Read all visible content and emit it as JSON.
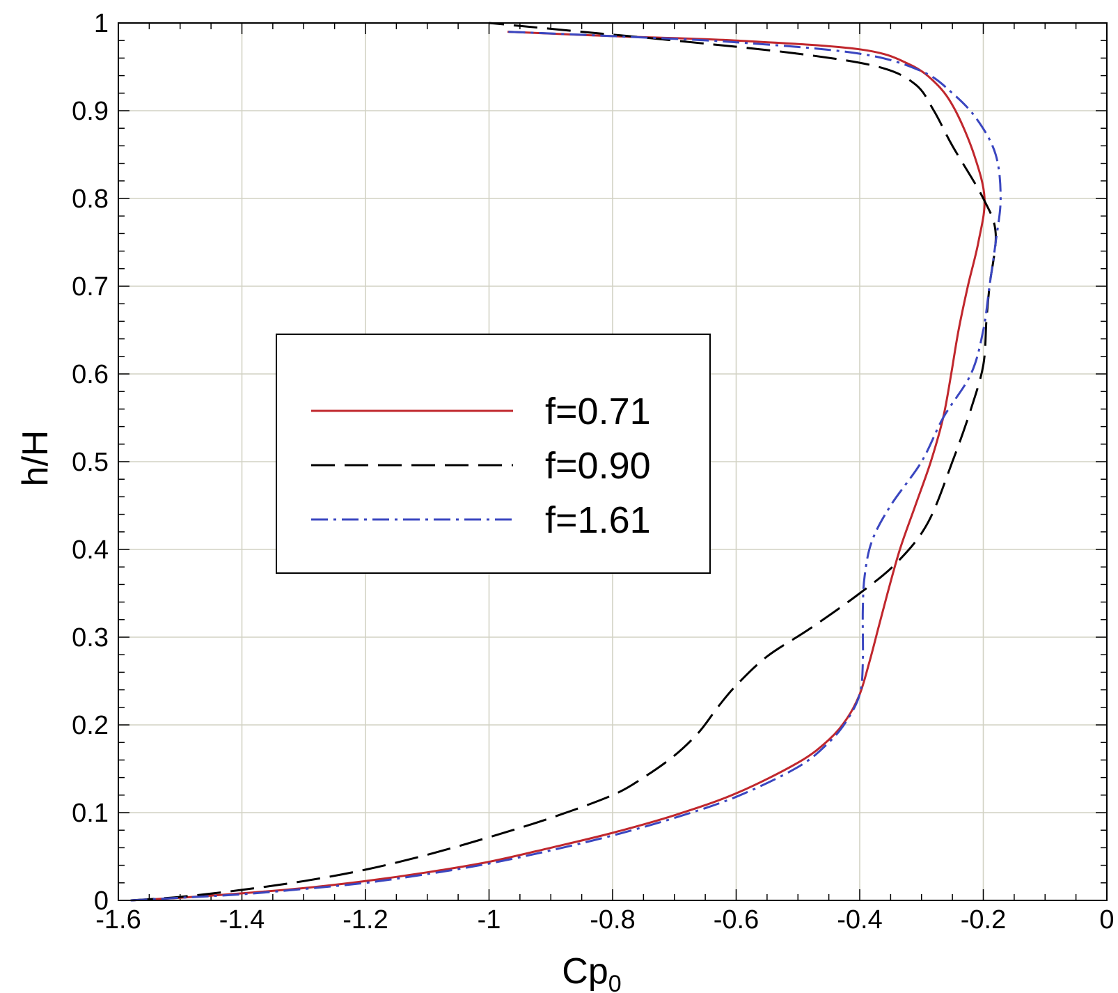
{
  "chart_data": {
    "type": "line",
    "title": "",
    "xlabel": "Cp",
    "xlabel_sub": "0",
    "ylabel": "h/H",
    "xlim": [
      -1.6,
      0
    ],
    "ylim": [
      0,
      1
    ],
    "xticks": [
      -1.6,
      -1.4,
      -1.2,
      -1,
      -0.8,
      -0.6,
      -0.4,
      -0.2,
      0
    ],
    "xtick_labels": [
      "-1.6",
      "-1.4",
      "-1.2",
      "-1",
      "-0.8",
      "-0.6",
      "-0.4",
      "-0.2",
      "0"
    ],
    "yticks": [
      0,
      0.1,
      0.2,
      0.3,
      0.4,
      0.5,
      0.6,
      0.7,
      0.8,
      0.9,
      1
    ],
    "ytick_labels": [
      "0",
      "0.1",
      "0.2",
      "0.3",
      "0.4",
      "0.5",
      "0.6",
      "0.7",
      "0.8",
      "0.9",
      "1"
    ],
    "grid": true,
    "legend_position": "center-left",
    "series": [
      {
        "name": "f=0.71",
        "color": "#c0272d",
        "style": "solid",
        "points": [
          [
            -1.58,
            0.0
          ],
          [
            -1.5,
            0.003
          ],
          [
            -1.4,
            0.008
          ],
          [
            -1.3,
            0.014
          ],
          [
            -1.2,
            0.022
          ],
          [
            -1.1,
            0.032
          ],
          [
            -1.0,
            0.044
          ],
          [
            -0.9,
            0.06
          ],
          [
            -0.8,
            0.077
          ],
          [
            -0.7,
            0.097
          ],
          [
            -0.6,
            0.122
          ],
          [
            -0.5,
            0.157
          ],
          [
            -0.45,
            0.183
          ],
          [
            -0.42,
            0.208
          ],
          [
            -0.4,
            0.235
          ],
          [
            -0.385,
            0.27
          ],
          [
            -0.37,
            0.31
          ],
          [
            -0.355,
            0.35
          ],
          [
            -0.335,
            0.4
          ],
          [
            -0.31,
            0.45
          ],
          [
            -0.285,
            0.5
          ],
          [
            -0.265,
            0.55
          ],
          [
            -0.252,
            0.6
          ],
          [
            -0.24,
            0.65
          ],
          [
            -0.225,
            0.7
          ],
          [
            -0.208,
            0.75
          ],
          [
            -0.198,
            0.8
          ],
          [
            -0.215,
            0.85
          ],
          [
            -0.245,
            0.9
          ],
          [
            -0.275,
            0.93
          ],
          [
            -0.32,
            0.953
          ],
          [
            -0.4,
            0.97
          ],
          [
            -0.6,
            0.98
          ],
          [
            -0.8,
            0.985
          ],
          [
            -0.97,
            0.99
          ]
        ]
      },
      {
        "name": "f=0.90",
        "color": "#000000",
        "style": "dashed",
        "points": [
          [
            -1.58,
            0.0
          ],
          [
            -1.5,
            0.004
          ],
          [
            -1.4,
            0.012
          ],
          [
            -1.3,
            0.022
          ],
          [
            -1.2,
            0.035
          ],
          [
            -1.1,
            0.052
          ],
          [
            -1.0,
            0.072
          ],
          [
            -0.9,
            0.094
          ],
          [
            -0.8,
            0.12
          ],
          [
            -0.75,
            0.14
          ],
          [
            -0.7,
            0.165
          ],
          [
            -0.66,
            0.192
          ],
          [
            -0.63,
            0.22
          ],
          [
            -0.6,
            0.245
          ],
          [
            -0.55,
            0.278
          ],
          [
            -0.48,
            0.31
          ],
          [
            -0.4,
            0.35
          ],
          [
            -0.34,
            0.385
          ],
          [
            -0.29,
            0.43
          ],
          [
            -0.25,
            0.5
          ],
          [
            -0.22,
            0.56
          ],
          [
            -0.2,
            0.61
          ],
          [
            -0.195,
            0.66
          ],
          [
            -0.19,
            0.7
          ],
          [
            -0.18,
            0.76
          ],
          [
            -0.2,
            0.8
          ],
          [
            -0.25,
            0.86
          ],
          [
            -0.28,
            0.9
          ],
          [
            -0.31,
            0.93
          ],
          [
            -0.37,
            0.95
          ],
          [
            -0.5,
            0.965
          ],
          [
            -0.7,
            0.98
          ],
          [
            -0.85,
            0.99
          ],
          [
            -1.0,
            1.0
          ]
        ]
      },
      {
        "name": "f=1.61",
        "color": "#3a46c0",
        "style": "dashdot",
        "points": [
          [
            -1.58,
            0.0
          ],
          [
            -1.5,
            0.003
          ],
          [
            -1.4,
            0.007
          ],
          [
            -1.3,
            0.013
          ],
          [
            -1.2,
            0.02
          ],
          [
            -1.1,
            0.03
          ],
          [
            -1.0,
            0.042
          ],
          [
            -0.9,
            0.057
          ],
          [
            -0.8,
            0.074
          ],
          [
            -0.7,
            0.094
          ],
          [
            -0.6,
            0.118
          ],
          [
            -0.5,
            0.152
          ],
          [
            -0.45,
            0.18
          ],
          [
            -0.42,
            0.206
          ],
          [
            -0.4,
            0.235
          ],
          [
            -0.395,
            0.27
          ],
          [
            -0.395,
            0.33
          ],
          [
            -0.392,
            0.37
          ],
          [
            -0.38,
            0.41
          ],
          [
            -0.35,
            0.45
          ],
          [
            -0.3,
            0.5
          ],
          [
            -0.265,
            0.55
          ],
          [
            -0.22,
            0.6
          ],
          [
            -0.2,
            0.65
          ],
          [
            -0.19,
            0.7
          ],
          [
            -0.18,
            0.75
          ],
          [
            -0.172,
            0.8
          ],
          [
            -0.18,
            0.85
          ],
          [
            -0.21,
            0.89
          ],
          [
            -0.25,
            0.92
          ],
          [
            -0.3,
            0.945
          ],
          [
            -0.4,
            0.965
          ],
          [
            -0.6,
            0.978
          ],
          [
            -0.8,
            0.985
          ],
          [
            -0.97,
            0.99
          ]
        ]
      }
    ]
  }
}
